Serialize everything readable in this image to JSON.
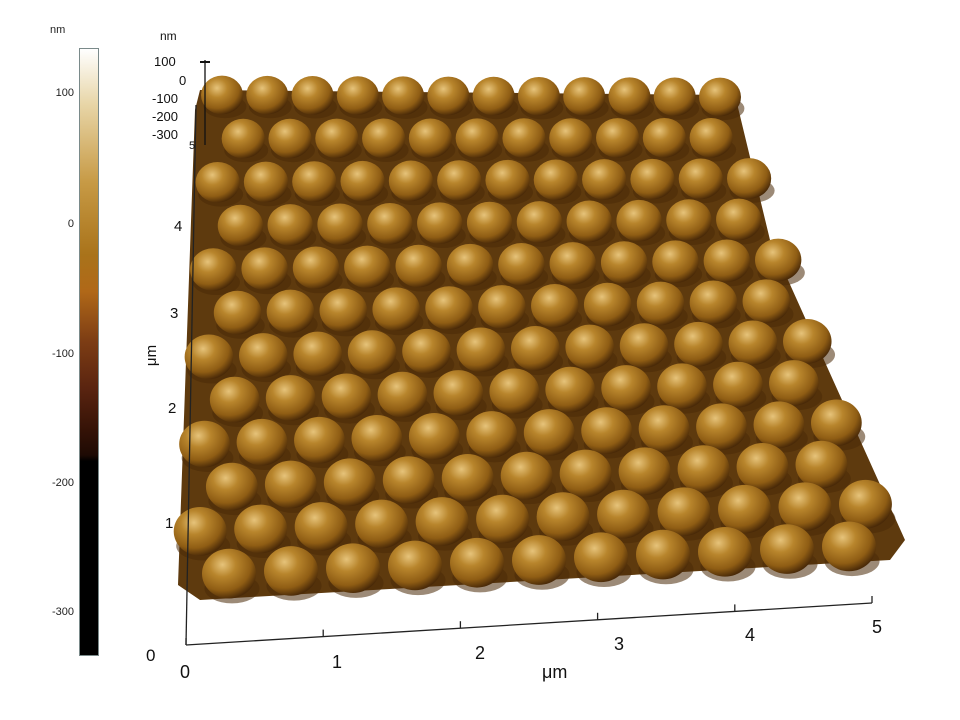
{
  "colorbar": {
    "unit": "nm",
    "ticks": [
      "100",
      "0",
      "-100",
      "-200",
      "-300"
    ]
  },
  "z_axis": {
    "unit": "nm",
    "ticks": [
      "100",
      "0",
      "-100",
      "-200",
      "-300"
    ]
  },
  "y_axis": {
    "label": "μm",
    "ticks": [
      "5",
      "4",
      "3",
      "2",
      "1",
      "0"
    ]
  },
  "x_axis": {
    "label": "μm",
    "ticks": [
      "0",
      "1",
      "2",
      "3",
      "4",
      "5"
    ]
  },
  "colors": {
    "sphere_base": "#a6711d",
    "sphere_highlight": "#d9b56a",
    "sphere_shadow": "#4a2a08",
    "background": "#ffffff"
  }
}
